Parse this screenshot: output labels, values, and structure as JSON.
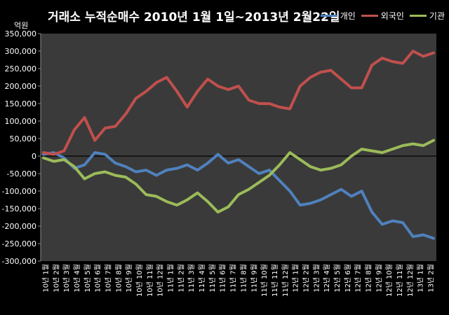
{
  "chart_data": {
    "type": "line",
    "title": "거래소 누적순매수 2010년 1월 1일~2013년 2월22일",
    "unit_label": "억원",
    "ylim": [
      -300000,
      350000
    ],
    "y_ticks": [
      "350,000",
      "300,000",
      "250,000",
      "200,000",
      "150,000",
      "100,000",
      "50,000",
      "0",
      "-50,000",
      "-100,000",
      "-150,000",
      "-200,000",
      "-250,000",
      "-300,000"
    ],
    "y_tick_values": [
      350000,
      300000,
      250000,
      200000,
      150000,
      100000,
      50000,
      0,
      -50000,
      -100000,
      -150000,
      -200000,
      -250000,
      -300000
    ],
    "x_ticks": [
      "10년 1월",
      "10년 2월",
      "10년 3월",
      "10년 4월",
      "10년 5월",
      "10년 6월",
      "10년 7월",
      "10년 8월",
      "10년 9월",
      "10년 10월",
      "10년 11월",
      "10년 12월",
      "11년 1월",
      "11년 2월",
      "11년 3월",
      "11년 4월",
      "11년 5월",
      "11년 6월",
      "11년 7월",
      "11년 8월",
      "11년 9월",
      "11년 10월",
      "11년 11월",
      "11년 12월",
      "12년 1월",
      "12년 2월",
      "12년 3월",
      "12년 4월",
      "12년 5월",
      "12년 6월",
      "12년 7월",
      "12년 8월",
      "12년 9월",
      "12년 10월",
      "12년 11월",
      "12년 12월",
      "13년 1월",
      "13년 2월"
    ],
    "grid": false,
    "legend_position": "top-right",
    "series": [
      {
        "name": "개인",
        "color": "#4f81bd",
        "values": [
          5000,
          10000,
          -5000,
          -35000,
          -25000,
          10000,
          5000,
          -20000,
          -30000,
          -45000,
          -40000,
          -55000,
          -40000,
          -35000,
          -25000,
          -40000,
          -20000,
          5000,
          -20000,
          -10000,
          -30000,
          -50000,
          -40000,
          -70000,
          -100000,
          -140000,
          -135000,
          -125000,
          -110000,
          -95000,
          -115000,
          -100000,
          -160000,
          -195000,
          -185000,
          -190000,
          -230000,
          -225000,
          -235000
        ]
      },
      {
        "name": "외국인",
        "color": "#c0504d",
        "values": [
          10000,
          5000,
          15000,
          75000,
          110000,
          45000,
          80000,
          85000,
          120000,
          165000,
          185000,
          210000,
          225000,
          185000,
          140000,
          185000,
          220000,
          200000,
          190000,
          200000,
          160000,
          150000,
          150000,
          140000,
          135000,
          200000,
          225000,
          240000,
          245000,
          220000,
          195000,
          195000,
          260000,
          280000,
          270000,
          265000,
          300000,
          285000,
          295000
        ]
      },
      {
        "name": "기관",
        "color": "#9bbb59",
        "values": [
          -5000,
          -15000,
          -10000,
          -30000,
          -65000,
          -50000,
          -45000,
          -55000,
          -60000,
          -80000,
          -110000,
          -115000,
          -130000,
          -140000,
          -125000,
          -105000,
          -130000,
          -160000,
          -145000,
          -110000,
          -95000,
          -75000,
          -55000,
          -25000,
          10000,
          -10000,
          -30000,
          -40000,
          -35000,
          -25000,
          0,
          20000,
          15000,
          10000,
          20000,
          30000,
          35000,
          30000,
          45000
        ]
      }
    ]
  }
}
